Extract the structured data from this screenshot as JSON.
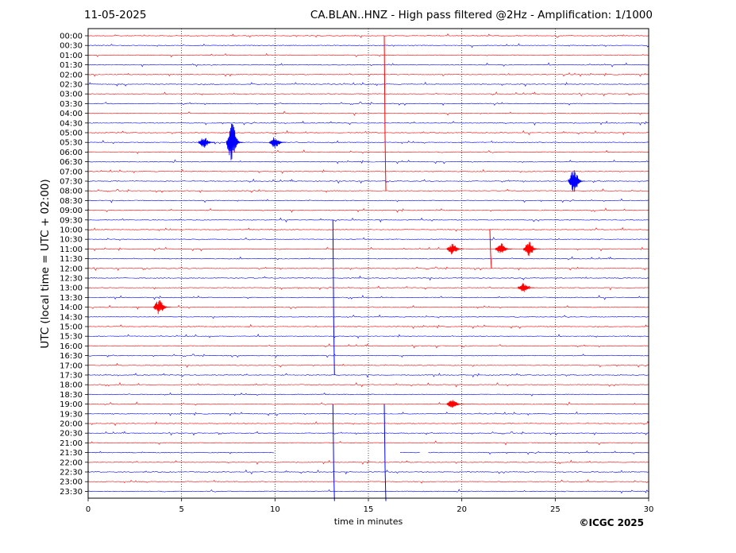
{
  "header": {
    "date": "11-05-2025",
    "title": "CA.BLAN..HNZ - High pass filtered @2Hz - Amplification: 1/1000"
  },
  "credit": "©ICGC 2025",
  "chart_data": {
    "type": "line",
    "title": "CA.BLAN..HNZ - High pass filtered @2Hz - Amplification: 1/1000",
    "xlabel": "time in minutes",
    "ylabel": "UTC (local time = UTC + 02:00)",
    "xlim": [
      0,
      30
    ],
    "xticks": [
      0,
      5,
      10,
      15,
      20,
      25,
      30
    ],
    "vertical_gridlines": [
      5,
      10,
      15,
      20,
      25
    ],
    "grid": "dotted vertical",
    "row_labels": [
      "00:00",
      "00:30",
      "01:00",
      "01:30",
      "02:00",
      "02:30",
      "03:00",
      "03:30",
      "04:00",
      "04:30",
      "05:00",
      "05:30",
      "06:00",
      "06:30",
      "07:00",
      "07:30",
      "08:00",
      "08:30",
      "09:00",
      "09:30",
      "10:00",
      "10:30",
      "11:00",
      "11:30",
      "12:00",
      "12:30",
      "13:00",
      "13:30",
      "14:00",
      "14:30",
      "15:00",
      "15:30",
      "16:00",
      "16:30",
      "17:00",
      "17:30",
      "18:00",
      "18:30",
      "19:00",
      "19:30",
      "20:00",
      "20:30",
      "21:00",
      "21:30",
      "22:00",
      "22:30",
      "23:00",
      "23:30"
    ],
    "colors": [
      "#ff0000",
      "#0000ff"
    ],
    "events": [
      {
        "row": "04:00",
        "minute": 15.85,
        "amplitude": 8.0,
        "kind": "spike"
      },
      {
        "row": "05:30",
        "minute": 7.7,
        "amplitude": 2.0,
        "kind": "burst"
      },
      {
        "row": "05:30",
        "minute": 6.2,
        "amplitude": 0.6,
        "kind": "burst"
      },
      {
        "row": "05:30",
        "minute": 10.0,
        "amplitude": 0.6,
        "kind": "burst"
      },
      {
        "row": "07:30",
        "minute": 26.0,
        "amplitude": 1.2,
        "kind": "burst"
      },
      {
        "row": "11:00",
        "minute": 21.5,
        "amplitude": 2.0,
        "kind": "spike"
      },
      {
        "row": "11:00",
        "minute": 19.5,
        "amplitude": 0.6,
        "kind": "burst"
      },
      {
        "row": "11:00",
        "minute": 22.1,
        "amplitude": 0.6,
        "kind": "burst"
      },
      {
        "row": "11:00",
        "minute": 23.6,
        "amplitude": 0.8,
        "kind": "burst"
      },
      {
        "row": "13:00",
        "minute": 23.3,
        "amplitude": 0.5,
        "kind": "burst"
      },
      {
        "row": "13:30",
        "minute": 13.1,
        "amplitude": 8.0,
        "kind": "spike"
      },
      {
        "row": "14:00",
        "minute": 3.8,
        "amplitude": 0.8,
        "kind": "burst"
      },
      {
        "row": "19:00",
        "minute": 19.5,
        "amplitude": 0.5,
        "kind": "burst"
      },
      {
        "row": "21:30",
        "minute": 13.1,
        "amplitude": 5.0,
        "kind": "spike"
      },
      {
        "row": "21:30",
        "minute": 15.85,
        "amplitude": 5.0,
        "kind": "spike"
      }
    ],
    "gaps": [
      {
        "row": "21:30",
        "from": 10.0,
        "to": 16.7
      },
      {
        "row": "21:30",
        "from": 17.8,
        "to": 18.2
      }
    ]
  }
}
